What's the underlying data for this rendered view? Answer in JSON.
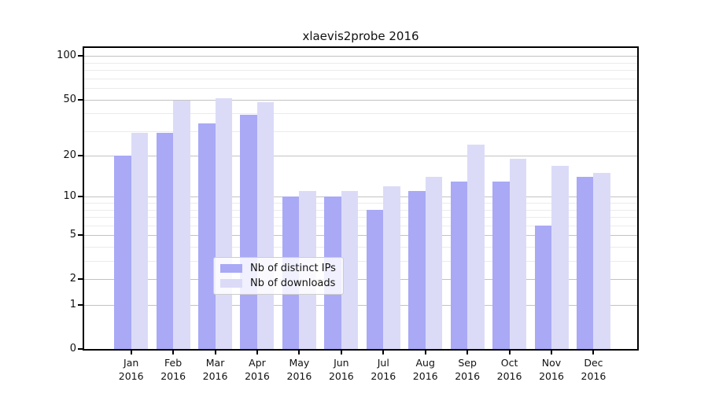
{
  "title": "xlaevis2probe 2016",
  "chart_data": {
    "type": "bar",
    "title": "xlaevis2probe 2016",
    "categories": [
      "Jan",
      "Feb",
      "Mar",
      "Apr",
      "May",
      "Jun",
      "Jul",
      "Aug",
      "Sep",
      "Oct",
      "Nov",
      "Dec"
    ],
    "category_sublabel": "2016",
    "series": [
      {
        "name": "Nb of distinct IPs",
        "color": "#a9a9f6",
        "values": [
          20,
          29,
          34,
          39,
          10,
          10,
          8,
          11,
          13,
          13,
          6,
          14
        ]
      },
      {
        "name": "Nb of downloads",
        "color": "#dbdbf8",
        "values": [
          29,
          49,
          51,
          48,
          11,
          11,
          12,
          14,
          24,
          19,
          17,
          15
        ]
      }
    ],
    "xlabel": "",
    "ylabel": "",
    "yscale": "log1p",
    "ylim": [
      0,
      114
    ],
    "y_tick_labels": [
      "100",
      "50",
      "20",
      "10",
      "5",
      "2",
      "1",
      "0"
    ],
    "y_major_ticks": [
      100,
      50,
      20,
      10,
      5,
      2,
      1,
      0
    ],
    "y_minor_gridlines": [
      3,
      4,
      6,
      7,
      8,
      9,
      30,
      40,
      60,
      70,
      80,
      90
    ],
    "grid": true,
    "legend_position": "lower center inside plot"
  }
}
